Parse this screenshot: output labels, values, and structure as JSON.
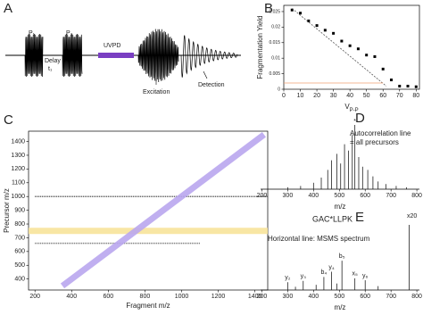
{
  "schematic": {
    "panel_label": "A",
    "pulse1": "P₁",
    "pulse2": "P₂",
    "delay": "Delay",
    "delay_sub": "t₁",
    "uvpd": "UVPD",
    "excitation": "Excitation",
    "detection": "Detection"
  },
  "chart_data": [
    {
      "type": "scatter",
      "panel_label": "B",
      "ylabel": "Fragmentation Yield",
      "xlabel": "V",
      "xlabel_subscript": "P-P",
      "xlim": [
        0,
        82
      ],
      "ylim": [
        0,
        0.027
      ],
      "xticks": [
        0,
        10,
        20,
        30,
        40,
        50,
        60,
        70,
        80
      ],
      "yticks": [
        0,
        0.005,
        0.01,
        0.015,
        0.02,
        0.025
      ],
      "series": [
        {
          "style": "points",
          "color": "#000000",
          "x": [
            5,
            10,
            15,
            20,
            25,
            30,
            35,
            40,
            45,
            50,
            55,
            60,
            65,
            70,
            75,
            80
          ],
          "values": [
            0.0255,
            0.0245,
            0.022,
            0.0205,
            0.019,
            0.018,
            0.0155,
            0.014,
            0.013,
            0.011,
            0.0105,
            0.0065,
            0.003,
            0.001,
            0.001,
            0.0008
          ]
        },
        {
          "style": "dashed",
          "color": "#555555",
          "x": [
            5,
            62
          ],
          "values": [
            0.026,
            0.001
          ]
        },
        {
          "style": "solid",
          "color": "#f0a070",
          "x": [
            0,
            60
          ],
          "values": [
            0.002,
            0.002
          ]
        }
      ]
    },
    {
      "type": "line",
      "panel_label": "C",
      "xlabel": "Fragment m/z",
      "ylabel": "Precursor m/z",
      "xlim": [
        165,
        1470
      ],
      "ylim": [
        320,
        1475
      ],
      "xticks": [
        200,
        400,
        600,
        800,
        1000,
        1200,
        1400
      ],
      "yticks": [
        400,
        500,
        600,
        700,
        800,
        900,
        1000,
        1100,
        1200,
        1300,
        1400
      ],
      "series": [
        {
          "width": 1.5,
          "color": "#333333",
          "x": [
            200,
            1470
          ],
          "values": [
            1000,
            1000
          ]
        },
        {
          "width": 1.5,
          "color": "#555555",
          "x": [
            200,
            1100
          ],
          "values": [
            660,
            660
          ]
        },
        {
          "width": 7,
          "color": "#f7e39a",
          "x": [
            165,
            1470
          ],
          "values": [
            750,
            750
          ]
        },
        {
          "width": 7,
          "color": "#b9a6ee",
          "x": [
            350,
            1450
          ],
          "values": [
            350,
            1450
          ]
        }
      ],
      "annotations": [
        {
          "text": "Autocorrelation line",
          "color": "#9b59d0"
        },
        {
          "text": "= all precursors",
          "color": "#9b59d0"
        },
        {
          "text": "Horizontal line: MSMS spectrum",
          "color": "#e8b400"
        }
      ]
    },
    {
      "type": "spectrum",
      "panel_label": "D",
      "xlabel": "m/z",
      "xlim": [
        195,
        810
      ],
      "ylim": [
        0,
        100
      ],
      "xticks": [
        200,
        300,
        400,
        500,
        600,
        700,
        800
      ],
      "star": "*",
      "x": [
        300,
        350,
        400,
        430,
        455,
        470,
        490,
        505,
        520,
        535,
        550,
        560,
        575,
        590,
        610,
        630,
        650,
        680,
        720,
        760
      ],
      "values": [
        3,
        5,
        10,
        18,
        30,
        45,
        55,
        40,
        70,
        60,
        85,
        100,
        50,
        35,
        30,
        20,
        12,
        8,
        5,
        3
      ]
    },
    {
      "type": "spectrum",
      "panel_label": "E",
      "xlabel": "m/z",
      "xlim": [
        195,
        810
      ],
      "ylim": [
        0,
        100
      ],
      "xticks": [
        200,
        300,
        400,
        500,
        600,
        700,
        800
      ],
      "peptide": "GAC*LLPK",
      "scale_note": "x20",
      "x": [
        300,
        330,
        360,
        410,
        440,
        470,
        490,
        510,
        560,
        600,
        650,
        770
      ],
      "values": [
        12,
        5,
        14,
        8,
        20,
        28,
        10,
        45,
        18,
        15,
        6,
        100
      ],
      "peak_labels": [
        "y₂",
        null,
        "y₃",
        null,
        "b₄",
        "y₄",
        null,
        "b₅",
        "x₅",
        "y₆",
        null,
        null
      ]
    }
  ]
}
